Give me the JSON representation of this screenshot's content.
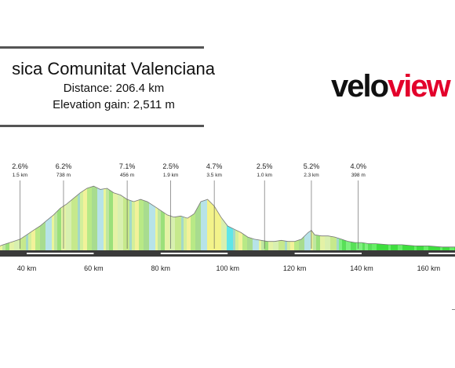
{
  "header": {
    "race_name": "sica Comunitat Valenciana",
    "distance_text": "Distance: 206.4 km",
    "elevation_text": "Elevation gain: 2,511 m"
  },
  "logo": {
    "part1": "velo",
    "part2": "view"
  },
  "colors": {
    "logo_red": "#e3002b",
    "road_bar": "#3a3a3a",
    "profile_line": "#777777"
  },
  "chart_data": {
    "type": "area",
    "title": "",
    "xlabel": "",
    "ylabel": "",
    "x_axis": {
      "unit": "km",
      "ticks": [
        40,
        60,
        80,
        100,
        120,
        140,
        160
      ],
      "tick_labels": [
        "40 km",
        "60 km",
        "80 km",
        "100 km",
        "120 km",
        "140 km",
        "160 km"
      ]
    },
    "grid": false,
    "profile": {
      "x_km": [
        33,
        36,
        38,
        40,
        42,
        44,
        46,
        48,
        50,
        52,
        54,
        56,
        58,
        60,
        62,
        64,
        66,
        68,
        70,
        72,
        74,
        76,
        78,
        80,
        82,
        84,
        86,
        88,
        90,
        92,
        94,
        96,
        98,
        100,
        102,
        104,
        106,
        108,
        110,
        112,
        114,
        116,
        118,
        120,
        122,
        124,
        125,
        126,
        128,
        130,
        132,
        134,
        136,
        138,
        140,
        142,
        144,
        148,
        152,
        156,
        160,
        164,
        166
      ],
      "elev_rel": [
        5,
        8,
        10,
        14,
        18,
        22,
        27,
        32,
        38,
        42,
        47,
        52,
        56,
        58,
        55,
        56,
        52,
        50,
        46,
        44,
        46,
        44,
        40,
        36,
        32,
        30,
        31,
        29,
        33,
        44,
        46,
        40,
        30,
        22,
        19,
        16,
        12,
        10,
        9,
        8,
        8,
        9,
        8,
        8,
        10,
        16,
        18,
        14,
        13,
        13,
        12,
        10,
        8,
        7,
        7,
        6,
        6,
        5,
        5,
        4,
        4,
        3,
        3
      ]
    },
    "climbs": [
      {
        "gradient": "2.6%",
        "length": "1.5 km",
        "km": 38
      },
      {
        "gradient": "6.2%",
        "length": "738 m",
        "km": 51
      },
      {
        "gradient": "7.1%",
        "length": "456 m",
        "km": 70
      },
      {
        "gradient": "2.5%",
        "length": "1.9 km",
        "km": 83
      },
      {
        "gradient": "4.7%",
        "length": "3.5 km",
        "km": 96
      },
      {
        "gradient": "2.5%",
        "length": "1.0 km",
        "km": 111
      },
      {
        "gradient": "5.2%",
        "length": "2.3 km",
        "km": 125
      },
      {
        "gradient": "4.0%",
        "length": "398 m",
        "km": 139
      }
    ]
  }
}
